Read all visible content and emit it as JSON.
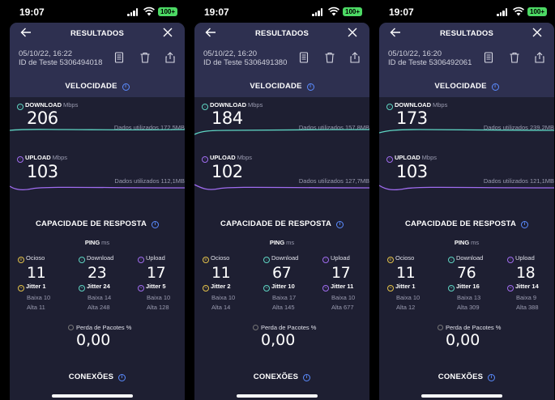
{
  "screens": [
    {
      "status_time": "19:07",
      "battery": "100+",
      "title": "RESULTADOS",
      "date": "05/10/22, 16:22",
      "test_id": "ID de Teste 5306494018",
      "speed_title": "VELOCIDADE",
      "download_label": "DOWNLOAD",
      "download_unit": "Mbps",
      "download_value": "206",
      "download_used": "Dados utilizados 172,5MB",
      "upload_label": "UPLOAD",
      "upload_unit": "Mbps",
      "upload_value": "103",
      "upload_used": "Dados utilizados 112,1MB",
      "resp_title": "CAPACIDADE DE RESPOSTA",
      "ping_label": "PING",
      "ping_unit": "ms",
      "idle_label": "Ocioso",
      "idle_value": "11",
      "idle_jitter": "Jitter 1",
      "idle_low": "Baixa 10",
      "idle_high": "Alta 11",
      "dl_label": "Download",
      "dl_value": "23",
      "dl_jitter": "Jitter 24",
      "dl_low": "Baixa 14",
      "dl_high": "Alta 248",
      "ul_label": "Upload",
      "ul_value": "17",
      "ul_jitter": "Jitter 5",
      "ul_low": "Baixa 10",
      "ul_high": "Alta 128",
      "loss_label": "Perda de Pacotes",
      "loss_unit": "%",
      "loss_value": "0,00",
      "conn_title": "CONEXÕES"
    },
    {
      "status_time": "19:07",
      "battery": "100+",
      "title": "RESULTADOS",
      "date": "05/10/22, 16:20",
      "test_id": "ID de Teste 5306491380",
      "speed_title": "VELOCIDADE",
      "download_label": "DOWNLOAD",
      "download_unit": "Mbps",
      "download_value": "184",
      "download_used": "Dados utilizados 157,8MB",
      "upload_label": "UPLOAD",
      "upload_unit": "Mbps",
      "upload_value": "102",
      "upload_used": "Dados utilizados 127,7MB",
      "resp_title": "CAPACIDADE DE RESPOSTA",
      "ping_label": "PING",
      "ping_unit": "ms",
      "idle_label": "Ocioso",
      "idle_value": "11",
      "idle_jitter": "Jitter 2",
      "idle_low": "Baixa 10",
      "idle_high": "Alta 14",
      "dl_label": "Download",
      "dl_value": "67",
      "dl_jitter": "Jitter 10",
      "dl_low": "Baixa 17",
      "dl_high": "Alta 145",
      "ul_label": "Upload",
      "ul_value": "17",
      "ul_jitter": "Jitter 11",
      "ul_low": "Baixa 10",
      "ul_high": "Alta 677",
      "loss_label": "Perda de Pacotes",
      "loss_unit": "%",
      "loss_value": "0,00",
      "conn_title": "CONEXÕES"
    },
    {
      "status_time": "19:07",
      "battery": "100+",
      "title": "RESULTADOS",
      "date": "05/10/22, 16:20",
      "test_id": "ID de Teste 5306492061",
      "speed_title": "VELOCIDADE",
      "download_label": "DOWNLOAD",
      "download_unit": "Mbps",
      "download_value": "173",
      "download_used": "Dados utilizados 239,2MB",
      "upload_label": "UPLOAD",
      "upload_unit": "Mbps",
      "upload_value": "103",
      "upload_used": "Dados utilizados 121,1MB",
      "resp_title": "CAPACIDADE DE RESPOSTA",
      "ping_label": "PING",
      "ping_unit": "ms",
      "idle_label": "Ocioso",
      "idle_value": "11",
      "idle_jitter": "Jitter 1",
      "idle_low": "Baixa 10",
      "idle_high": "Alta 12",
      "dl_label": "Download",
      "dl_value": "76",
      "dl_jitter": "Jitter 16",
      "dl_low": "Baixa 13",
      "dl_high": "Alta 309",
      "ul_label": "Upload",
      "ul_value": "18",
      "ul_jitter": "Jitter 14",
      "ul_low": "Baixa 9",
      "ul_high": "Alta 388",
      "loss_label": "Perda de Pacotes",
      "loss_unit": "%",
      "loss_value": "0,00",
      "conn_title": "CONEXÕES"
    }
  ],
  "colors": {
    "header_bg": "#2e3050",
    "sheet_bg": "#1e1f32",
    "download": "#5fd6c4",
    "upload": "#a06cf0",
    "idle": "#e3c24a",
    "accent": "#5b8cff",
    "battery": "#4cd964"
  },
  "icons": {
    "back": "arrow-left-icon",
    "close": "close-icon",
    "list": "document-list-icon",
    "trash": "trash-icon",
    "share": "share-icon",
    "info": "info-icon"
  }
}
